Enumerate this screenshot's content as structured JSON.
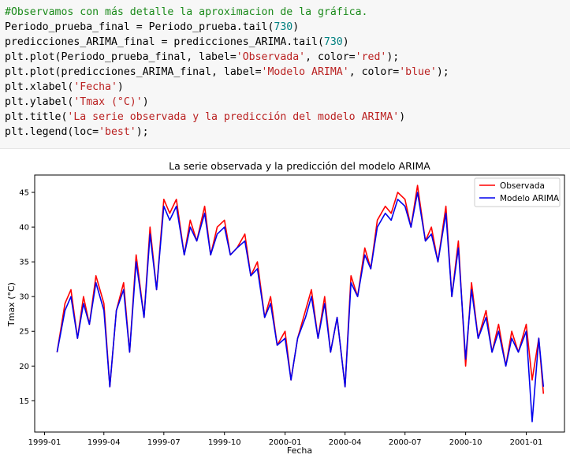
{
  "code": {
    "line1": "#Observamos con más detalle la aproximacion de la gráfica.",
    "line2_a": "Periodo_prueba_final = Periodo_prueba.tail(",
    "line2_num": "730",
    "line2_b": ")",
    "line3_a": "predicciones_ARIMA_final = predicciones_ARIMA.tail(",
    "line3_num": "730",
    "line3_b": ")",
    "line4_a": "plt.plot(Periodo_prueba_final, label=",
    "line4_s1": "'Observada'",
    "line4_b": ", color=",
    "line4_s2": "'red'",
    "line4_c": ");",
    "line5_a": "plt.plot(predicciones_ARIMA_final, label=",
    "line5_s1": "'Modelo ARIMA'",
    "line5_b": ", color=",
    "line5_s2": "'blue'",
    "line5_c": ");",
    "line6_a": "plt.xlabel(",
    "line6_s": "'Fecha'",
    "line6_b": ")",
    "line7_a": "plt.ylabel(",
    "line7_s": "'Tmax (°C)'",
    "line7_b": ")",
    "line8_a": "plt.title(",
    "line8_s": "'La serie observada y la predicción del modelo ARIMA'",
    "line8_b": ")",
    "line9_a": "plt.legend(loc=",
    "line9_s": "'best'",
    "line9_b": ");"
  },
  "chart_data": {
    "type": "line",
    "title": "La serie observada y la predicción del modelo ARIMA",
    "xlabel": "Fecha",
    "ylabel": "Tmax (°C)",
    "x_ticks": [
      "1999-01",
      "1999-04",
      "1999-07",
      "1999-10",
      "2000-01",
      "2000-04",
      "2000-07",
      "2000-10",
      "2001-01"
    ],
    "y_ticks": [
      15,
      20,
      25,
      30,
      35,
      40,
      45
    ],
    "xlim": [
      "1998-12-17",
      "2001-02-28"
    ],
    "ylim": [
      10.5,
      47.5
    ],
    "legend_position": "top-right",
    "grid": false,
    "series": [
      {
        "name": "Observada",
        "color": "#ff0000",
        "stroke_width": 1.6
      },
      {
        "name": "Modelo ARIMA",
        "color": "#0000ee",
        "stroke_width": 1.6
      }
    ],
    "x": [
      "1999-01-20",
      "1999-02-01",
      "1999-02-10",
      "1999-02-20",
      "1999-03-01",
      "1999-03-10",
      "1999-03-20",
      "1999-04-01",
      "1999-04-10",
      "1999-04-20",
      "1999-05-01",
      "1999-05-10",
      "1999-05-20",
      "1999-06-01",
      "1999-06-10",
      "1999-06-20",
      "1999-07-01",
      "1999-07-10",
      "1999-07-20",
      "1999-08-01",
      "1999-08-10",
      "1999-08-20",
      "1999-09-01",
      "1999-09-10",
      "1999-09-20",
      "1999-10-01",
      "1999-10-10",
      "1999-10-20",
      "1999-11-01",
      "1999-11-10",
      "1999-11-20",
      "1999-12-01",
      "1999-12-10",
      "1999-12-20",
      "2000-01-01",
      "2000-01-10",
      "2000-01-20",
      "2000-02-01",
      "2000-02-10",
      "2000-02-20",
      "2000-03-01",
      "2000-03-10",
      "2000-03-20",
      "2000-04-01",
      "2000-04-10",
      "2000-04-20",
      "2000-05-01",
      "2000-05-10",
      "2000-05-20",
      "2000-06-01",
      "2000-06-10",
      "2000-06-20",
      "2000-07-01",
      "2000-07-10",
      "2000-07-20",
      "2000-08-01",
      "2000-08-10",
      "2000-08-20",
      "2000-09-01",
      "2000-09-10",
      "2000-09-20",
      "2000-10-01",
      "2000-10-10",
      "2000-10-20",
      "2000-11-01",
      "2000-11-10",
      "2000-11-20",
      "2000-12-01",
      "2000-12-10",
      "2000-12-20",
      "2001-01-01",
      "2001-01-10",
      "2001-01-20",
      "2001-01-27"
    ],
    "observed": [
      22,
      29,
      31,
      24,
      30,
      26,
      33,
      29,
      17,
      28,
      32,
      22,
      36,
      27,
      40,
      31,
      44,
      42,
      44,
      36,
      41,
      38,
      43,
      36,
      40,
      41,
      36,
      37,
      39,
      33,
      35,
      27,
      30,
      23,
      25,
      18,
      24,
      28,
      31,
      24,
      30,
      22,
      27,
      17,
      33,
      30,
      37,
      34,
      41,
      43,
      42,
      45,
      44,
      40,
      46,
      38,
      40,
      35,
      43,
      30,
      38,
      20,
      32,
      24,
      28,
      22,
      26,
      20,
      25,
      22,
      26,
      18,
      24,
      16
    ],
    "predicted": [
      22,
      28,
      30,
      24,
      29,
      26,
      32,
      28,
      17,
      28,
      31,
      22,
      35,
      27,
      39,
      31,
      43,
      41,
      43,
      36,
      40,
      38,
      42,
      36,
      39,
      40,
      36,
      37,
      38,
      33,
      34,
      27,
      29,
      23,
      24,
      18,
      24,
      27,
      30,
      24,
      29,
      22,
      27,
      17,
      32,
      30,
      36,
      34,
      40,
      42,
      41,
      44,
      43,
      40,
      45,
      38,
      39,
      35,
      42,
      30,
      37,
      21,
      31,
      24,
      27,
      22,
      25,
      20,
      24,
      22,
      25,
      12,
      24,
      17
    ]
  }
}
